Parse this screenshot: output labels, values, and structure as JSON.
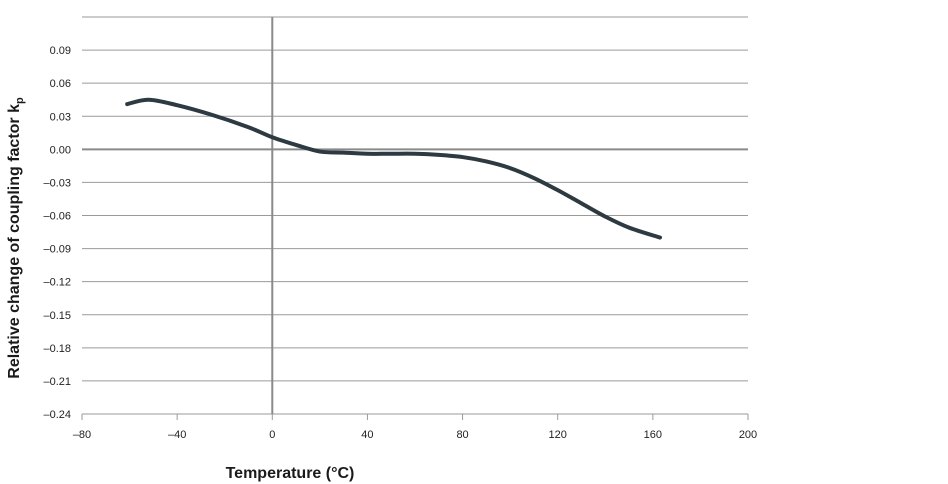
{
  "chart_data": {
    "type": "line",
    "title": "",
    "xlabel": "Temperature (°C)",
    "ylabel": "Relative change of coupling factor kp",
    "ylabel_main": "Relative change of coupling factor k",
    "ylabel_sub": "p",
    "xlim": [
      -80,
      200
    ],
    "ylim": [
      -0.24,
      0.12
    ],
    "x_ticks": [
      -80,
      -40,
      0,
      40,
      80,
      120,
      160,
      200
    ],
    "x_tick_labels": [
      "–80",
      "–40",
      "0",
      "40",
      "80",
      "120",
      "160",
      "200"
    ],
    "y_ticks": [
      0.09,
      0.06,
      0.03,
      0.0,
      -0.03,
      -0.06,
      -0.09,
      -0.12,
      -0.15,
      -0.18,
      -0.21,
      -0.24
    ],
    "y_tick_labels": [
      "0.09",
      "0.06",
      "0.03",
      "0.00",
      "–0.03",
      "–0.06",
      "–0.09",
      "–0.12",
      "–0.15",
      "–0.18",
      "–0.21",
      "–0.24"
    ],
    "grid": "horizontal",
    "series": [
      {
        "color": "#2e3a42",
        "x": [
          -61,
          -52,
          -40,
          -25,
          -10,
          0,
          10,
          20,
          30,
          40,
          50,
          60,
          70,
          80,
          90,
          100,
          110,
          120,
          130,
          140,
          150,
          163
        ],
        "y": [
          0.041,
          0.045,
          0.04,
          0.031,
          0.02,
          0.011,
          0.004,
          -0.002,
          -0.003,
          -0.004,
          -0.004,
          -0.004,
          -0.005,
          -0.007,
          -0.011,
          -0.017,
          -0.026,
          -0.037,
          -0.049,
          -0.061,
          -0.071,
          -0.08
        ]
      }
    ]
  }
}
